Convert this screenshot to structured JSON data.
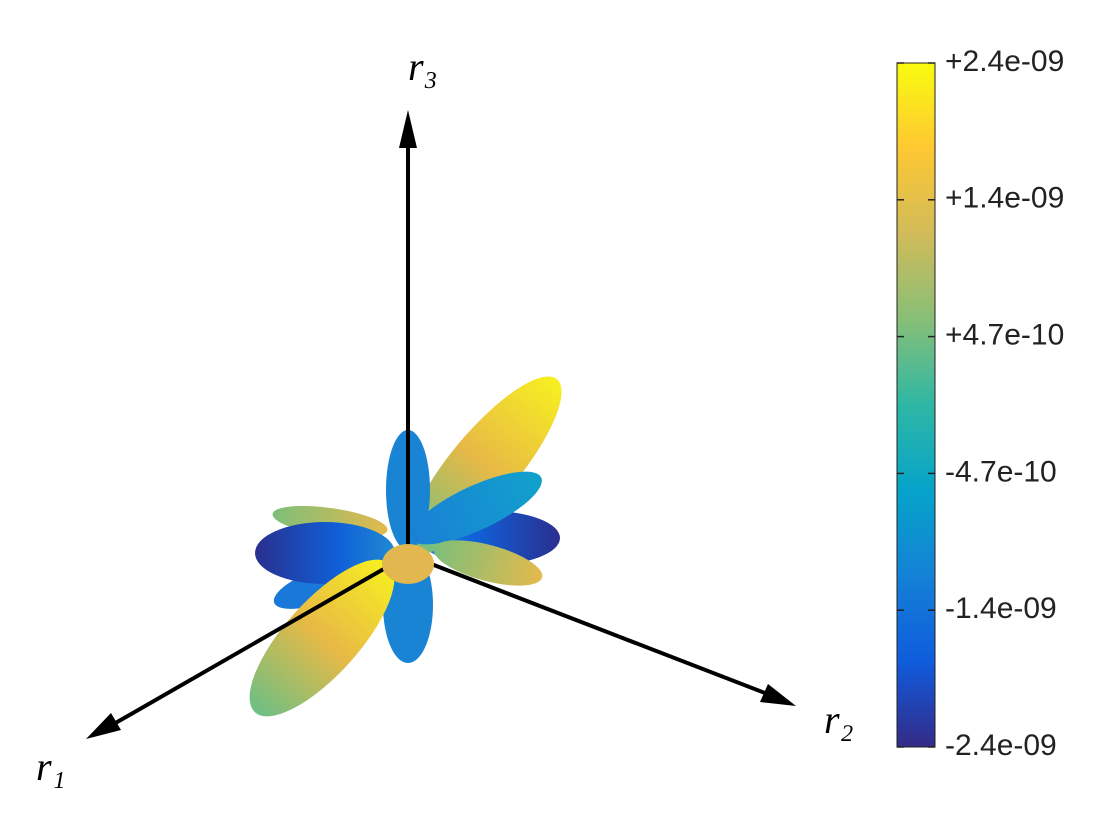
{
  "chart_data": {
    "type": "lobes3d",
    "axis_labels": {
      "r1": "r₁",
      "r2": "r₂",
      "r3": "r₃"
    },
    "clim": [
      -2.35e-09,
      2.35e-09
    ],
    "colorbar_ticks": [
      {
        "value": 2.35e-09,
        "label": "+2.4e-09"
      },
      {
        "value": 1.41e-09,
        "label": "+1.4e-09"
      },
      {
        "value": 4.7e-10,
        "label": "+4.7e-10"
      },
      {
        "value": -4.7e-10,
        "label": "-4.7e-10"
      },
      {
        "value": -1.41e-09,
        "label": "-1.4e-09"
      },
      {
        "value": -2.35e-09,
        "label": "-2.4e-09"
      }
    ],
    "colormap": [
      "#352a87",
      "#0f5cdd",
      "#1481d6",
      "#06a4ca",
      "#2eb7a4",
      "#87bf77",
      "#d1bb59",
      "#fec832",
      "#f9fb0e"
    ]
  }
}
